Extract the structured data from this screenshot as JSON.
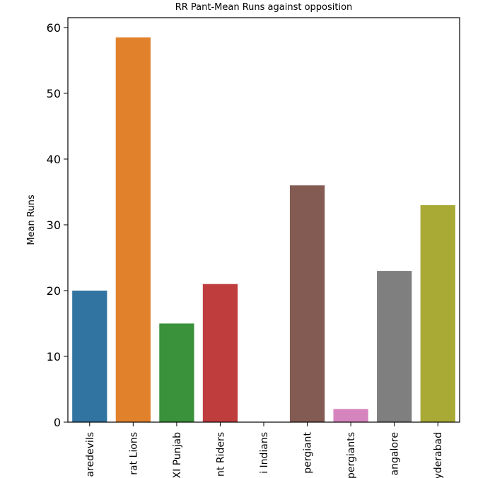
{
  "chart_data": {
    "type": "bar",
    "title": "RR Pant-Mean Runs against opposition",
    "xlabel": "",
    "ylabel": "Mean Runs",
    "ylim": [
      0,
      61.5
    ],
    "yticks": [
      0,
      10,
      20,
      30,
      40,
      50,
      60
    ],
    "grid": false,
    "categories": [
      "aredevils",
      "rat Lions",
      "XI Punjab",
      "nt Riders",
      "i Indians",
      "pergiant",
      "pergiants",
      "angalore",
      "yderabad"
    ],
    "values": [
      20,
      58.5,
      15,
      21,
      0,
      36,
      2,
      23,
      33
    ],
    "colors": [
      "#3274a1",
      "#e1812c",
      "#3a923a",
      "#c03d3e",
      "#9372b2",
      "#845b53",
      "#d684bd",
      "#7f7f7f",
      "#a9aa35"
    ]
  }
}
